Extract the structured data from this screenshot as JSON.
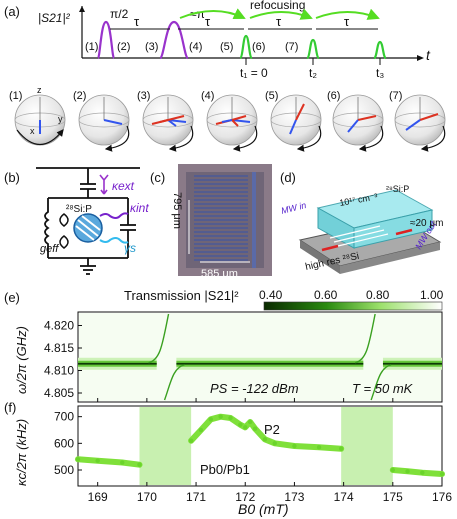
{
  "panel_a": {
    "label": "(a)",
    "ylabel": "|S21|²",
    "xlabel": "t",
    "pulse_pi2": "π/2",
    "pulse_pi": "≈π",
    "refocusing": "refocusing",
    "tau": "τ",
    "steps": [
      "(1)",
      "(2)",
      "(3)",
      "(4)",
      "(5)",
      "(6)",
      "(7)"
    ],
    "t1": "t₁ = 0",
    "t2": "t₂",
    "t3": "t₃",
    "bloch_labels": [
      "(1)",
      "(2)",
      "(3)",
      "(4)",
      "(5)",
      "(6)",
      "(7)"
    ],
    "axis_z": "z",
    "axis_x": "x",
    "axis_y": "y"
  },
  "panel_b": {
    "label": "(b)",
    "kappa_ext": "κext",
    "kappa_int": "κint",
    "si_label": "²⁸Si:P",
    "g_eff": "geff",
    "gamma_s": "γs"
  },
  "panel_c": {
    "label": "(c)",
    "height": "795 μm",
    "width": "585 μm"
  },
  "panel_d": {
    "label": "(d)",
    "mw_in": "MW in",
    "mw_out": "MW out",
    "sample": "²⁸Si:P",
    "doping": "10¹⁷ cm⁻³",
    "thickness": "≈20 μm",
    "substrate": "high res ²⁸Si"
  },
  "panel_e": {
    "label": "(e)",
    "colorbar_title": "Transmission |S21|²",
    "colorbar_ticks": [
      "0.40",
      "0.60",
      "0.80",
      "1.00"
    ],
    "ylabel": "ω/2π (GHz)",
    "yticks": [
      "4.820",
      "4.815",
      "4.810",
      "4.805"
    ],
    "power": "PS = -122 dBm",
    "temperature": "T = 50 mK"
  },
  "panel_f": {
    "label": "(f)",
    "ylabel": "κc/2π (kHz)",
    "yticks": [
      "700",
      "600",
      "500"
    ],
    "xticks": [
      "169",
      "170",
      "171",
      "172",
      "173",
      "174",
      "175",
      "176"
    ],
    "xlabel": "B0 (mT)",
    "p2": "P2",
    "pb": "Pb0/Pb1"
  },
  "colors": {
    "pulse_purple": "#9933cc",
    "echo_green": "#33cc33",
    "arrow_green": "#55dd22",
    "kappa_int_purple": "#7722cc",
    "gamma_cyan": "#33bbee",
    "data_green": "#7fe03a",
    "shade_green": "#c8f0b0",
    "blue_vec": "#3355ee",
    "red_vec": "#dd3322"
  },
  "chart_data": [
    {
      "type": "heatmap",
      "xlabel": "B0 (mT)",
      "ylabel": "ω/2π (GHz)",
      "xlim": [
        168.6,
        176
      ],
      "ylim": [
        4.803,
        4.823
      ],
      "colorbar_range": [
        0.4,
        1.0
      ],
      "resonance_frequency": 4.8115,
      "anticrossings_B0": [
        170.4,
        174.6
      ]
    },
    {
      "type": "scatter",
      "xlabel": "B0 (mT)",
      "ylabel": "κc/2π (kHz)",
      "xlim": [
        168.6,
        176
      ],
      "ylim": [
        440,
        740
      ],
      "shaded_ranges": [
        [
          169.85,
          170.9
        ],
        [
          173.95,
          175.0
        ]
      ],
      "x": [
        168.6,
        169.0,
        169.5,
        169.85,
        170.9,
        171.1,
        171.3,
        171.5,
        171.7,
        171.9,
        172.0,
        172.1,
        172.2,
        172.4,
        172.6,
        173.0,
        173.5,
        173.95,
        175.0,
        175.3,
        175.6,
        176.0
      ],
      "values": [
        540,
        535,
        528,
        520,
        610,
        650,
        690,
        700,
        695,
        670,
        660,
        680,
        655,
        615,
        600,
        590,
        585,
        580,
        500,
        495,
        490,
        485
      ]
    }
  ]
}
